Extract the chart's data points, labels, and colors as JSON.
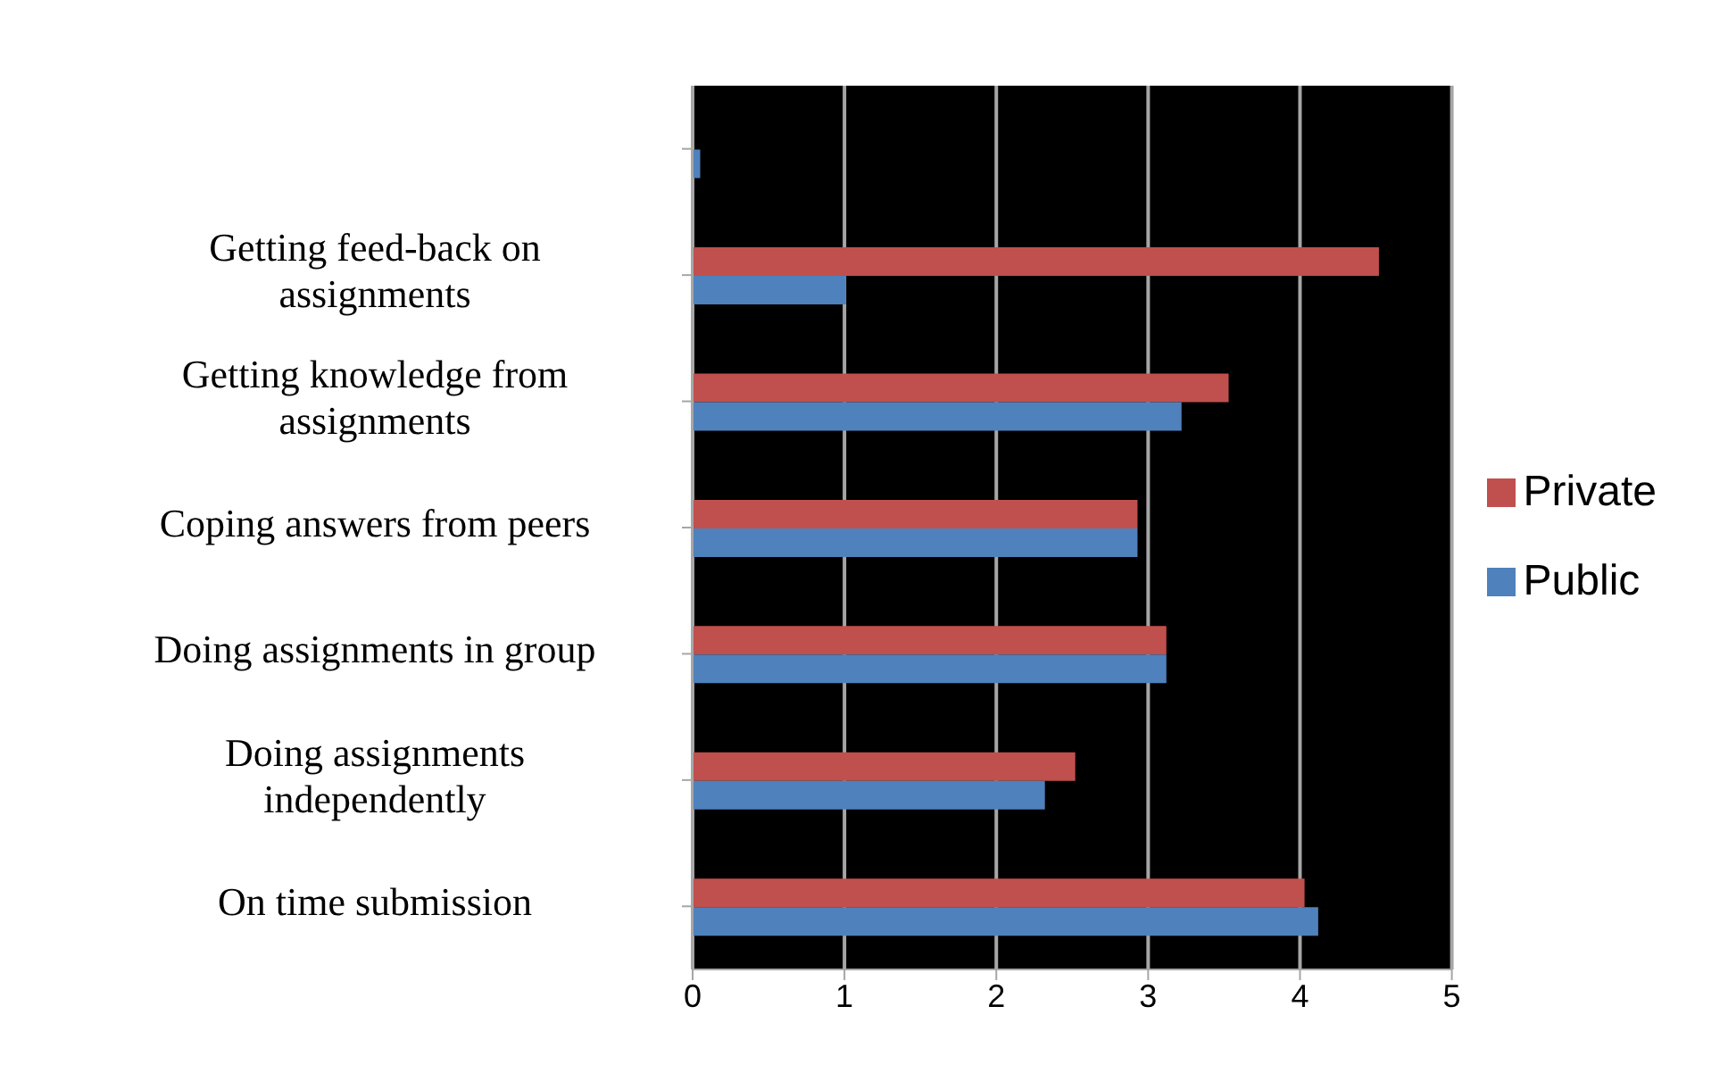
{
  "chart_data": {
    "type": "bar",
    "orientation": "horizontal",
    "categories": [
      null,
      "Getting feed-back on assignments",
      "Getting knowledge from assignments",
      "Coping answers from peers",
      "Doing assignments in group",
      "Doing assignments independently",
      "On time submission"
    ],
    "series": [
      {
        "name": "Private",
        "color": "#c0504d",
        "values": [
          null,
          4.52,
          3.53,
          2.93,
          3.12,
          2.52,
          4.03
        ]
      },
      {
        "name": "Public",
        "color": "#4f81bd",
        "values": [
          0.05,
          1.01,
          3.22,
          2.93,
          3.12,
          2.32,
          4.12
        ]
      }
    ],
    "xlim": [
      0,
      5
    ],
    "xticks": [
      0,
      1,
      2,
      3,
      4,
      5
    ],
    "grid": "x",
    "legend": "right"
  }
}
